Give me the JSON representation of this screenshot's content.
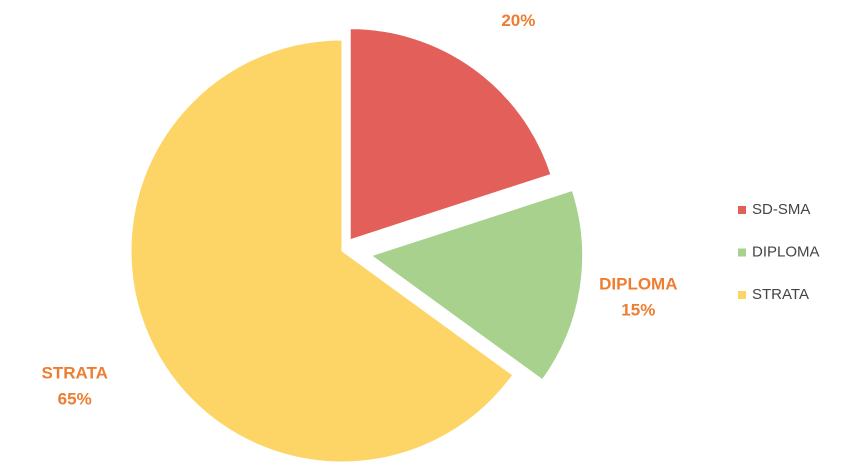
{
  "chart_data": {
    "type": "pie",
    "categories": [
      "SD-SMA",
      "DIPLOMA",
      "STRATA"
    ],
    "values": [
      20,
      15,
      65
    ],
    "value_labels": [
      "20%",
      "15%",
      "65%"
    ],
    "colors": [
      "#e35f5a",
      "#a8d18d",
      "#fdd567"
    ],
    "legend": "right"
  }
}
